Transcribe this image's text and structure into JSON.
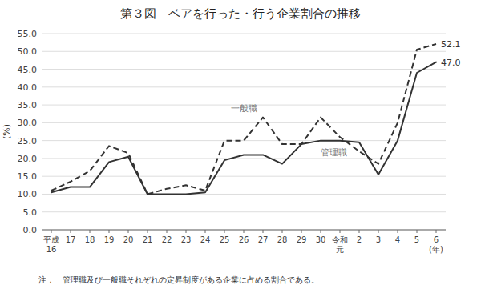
{
  "chart_data": {
    "type": "line",
    "title": "第３図　ベアを行った・行う企業割合の推移",
    "y_label": "(%)",
    "note": "注：　管理職及び一般職それぞれの定昇制度がある企業に占める割合である。",
    "categories": [
      "平成\n16",
      "17",
      "18",
      "19",
      "20",
      "21",
      "22",
      "23",
      "24",
      "25",
      "26",
      "27",
      "28",
      "29",
      "30",
      "令和\n元",
      "2",
      "3",
      "4",
      "5",
      "6\n(年)"
    ],
    "series": [
      {
        "name": "管理職",
        "color": "#333333",
        "line_style": "solid",
        "values": [
          10.5,
          12.0,
          12.0,
          19.0,
          20.5,
          10.0,
          10.0,
          10.0,
          10.5,
          19.5,
          21.0,
          21.0,
          18.5,
          24.0,
          25.0,
          25.0,
          24.5,
          15.5,
          25.0,
          44.0,
          47.0
        ]
      },
      {
        "name": "一般職",
        "color": "#333333",
        "line_style": "dashed",
        "values": [
          11.0,
          13.5,
          16.5,
          23.5,
          21.5,
          10.0,
          11.5,
          12.5,
          11.0,
          25.0,
          25.0,
          31.5,
          24.0,
          24.0,
          31.5,
          26.0,
          22.0,
          18.5,
          30.0,
          50.5,
          52.1
        ]
      }
    ],
    "annotations": [
      {
        "text": "52.1",
        "value": 52.1
      },
      {
        "text": "47.0",
        "value": 47.0
      }
    ],
    "ylim": [
      0.0,
      55.0
    ],
    "yticks": [
      {
        "value": 0.0,
        "label": "0.0"
      },
      {
        "value": 5.0,
        "label": "5.0"
      },
      {
        "value": 10.0,
        "label": "10.0"
      },
      {
        "value": 15.0,
        "label": "15.0"
      },
      {
        "value": 20.0,
        "label": "20.0"
      },
      {
        "value": 25.0,
        "label": "25.0"
      },
      {
        "value": 30.0,
        "label": "30.0"
      },
      {
        "value": 35.0,
        "label": "35.0"
      },
      {
        "value": 40.0,
        "label": "40.0"
      },
      {
        "value": 45.0,
        "label": "45.0"
      },
      {
        "value": 50.0,
        "label": "50.0"
      },
      {
        "value": 55.0,
        "label": "55.0"
      }
    ],
    "grid": true
  }
}
